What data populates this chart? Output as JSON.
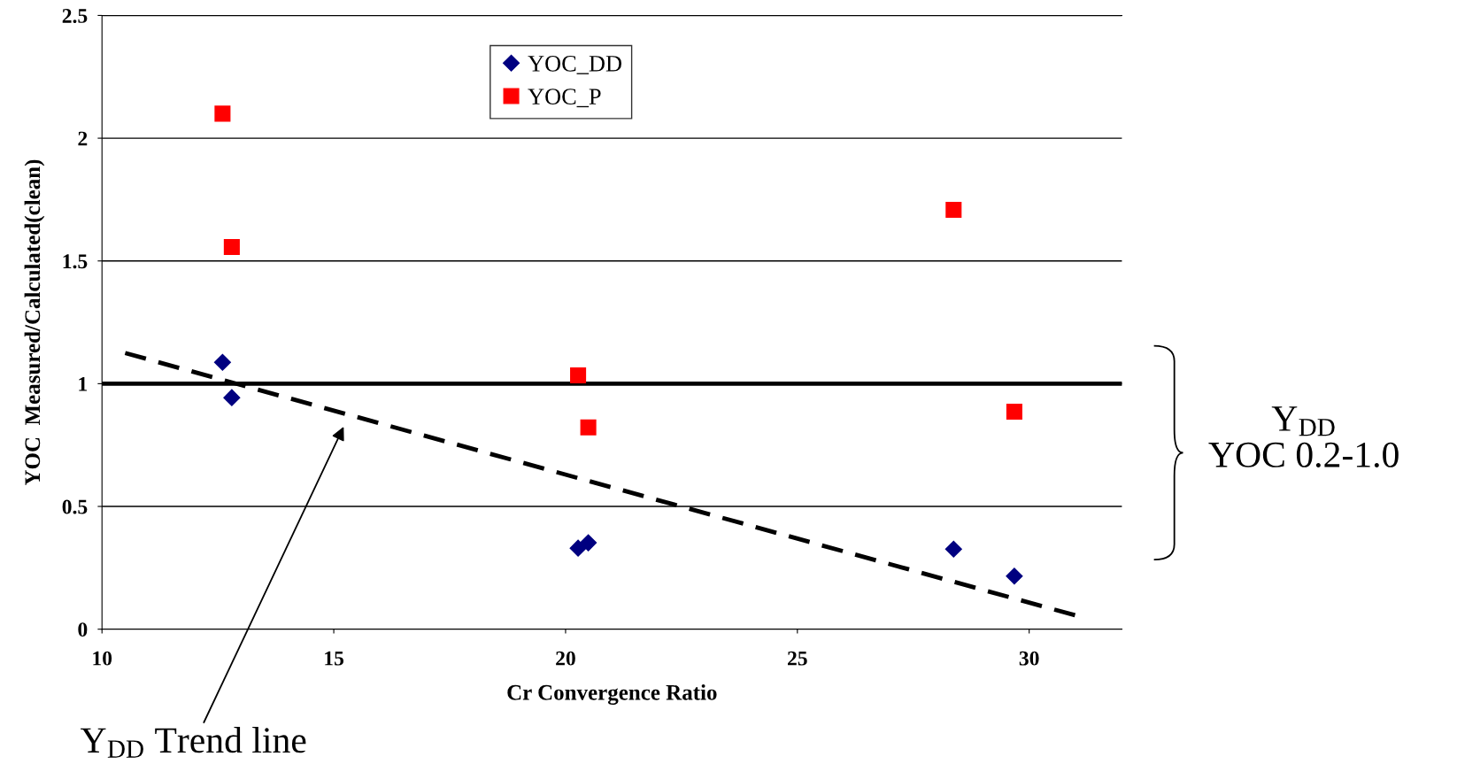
{
  "chart_data": {
    "type": "scatter",
    "xlabel": "Cr Convergence Ratio",
    "ylabel": "YOC  Measured/Calculated(clean)",
    "xlim": [
      10,
      32
    ],
    "xticks": [
      10,
      15,
      20,
      25,
      30
    ],
    "ylim": [
      0,
      2.5
    ],
    "yticks": [
      0,
      0.5,
      1,
      1.5,
      2,
      2.5
    ],
    "grid": "y",
    "legend": "top",
    "series": [
      {
        "name": "YOC_DD",
        "color": "#000080",
        "marker": "diamond",
        "x": [
          12.6,
          12.8,
          20.27,
          20.49,
          28.37,
          29.68
        ],
        "values": [
          1.087,
          0.943,
          0.33,
          0.352,
          0.326,
          0.216
        ]
      },
      {
        "name": "YOC_P",
        "color": "#ff0000",
        "marker": "square",
        "x": [
          12.6,
          12.8,
          20.27,
          20.49,
          28.37,
          29.68
        ],
        "values": [
          2.1,
          1.557,
          1.034,
          0.822,
          1.708,
          0.886
        ]
      },
      {
        "type": "line",
        "color": "#000000",
        "line_style": "dashed",
        "x": [
          10.5,
          31.06
        ],
        "values": [
          1.125,
          0.053
        ]
      }
    ],
    "ref_lines": [
      {
        "axis": "y",
        "value": 1,
        "color": "#000000",
        "line_style": "solid"
      }
    ],
    "annotations": [
      "Y$_{DD}$ Trend line",
      "Y$_{DD}$\nYOC 0.2-1.0"
    ]
  }
}
